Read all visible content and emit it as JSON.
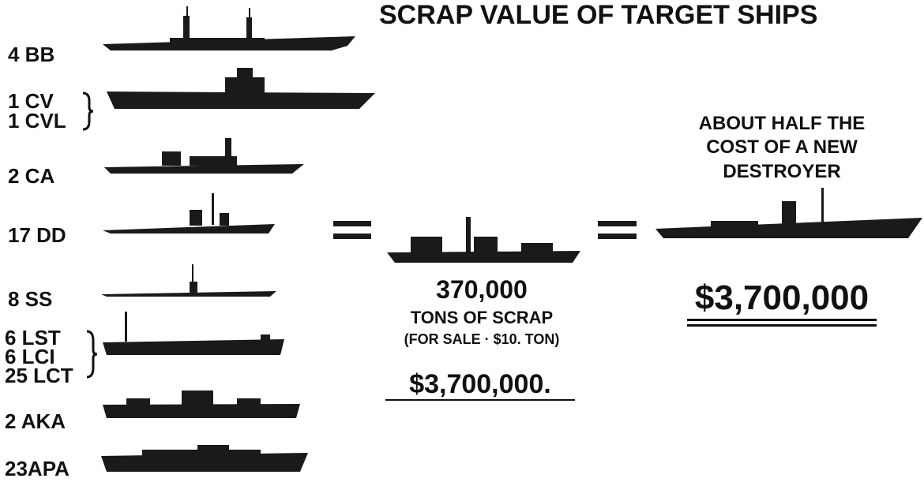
{
  "header": {
    "title": "SCRAP VALUE OF TARGET SHIPS"
  },
  "ships": [
    {
      "label": "4 BB"
    },
    {
      "label": "1 CV"
    },
    {
      "label": "1 CVL"
    },
    {
      "label": "2 CA"
    },
    {
      "label": "17 DD"
    },
    {
      "label": "8 SS"
    },
    {
      "label": "6 LST"
    },
    {
      "label": "6 LCI"
    },
    {
      "label": "25 LCT"
    },
    {
      "label": "2 AKA"
    },
    {
      "label": "23APA"
    }
  ],
  "scrap": {
    "tons": "370,000",
    "unit": "TONS OF SCRAP",
    "price": "(FOR SALE · $10. TON)",
    "value": "$3,700,000."
  },
  "destroyer": {
    "caption": [
      "ABOUT HALF THE",
      "COST OF A NEW",
      "DESTROYER"
    ],
    "value": "$3,700,000"
  }
}
